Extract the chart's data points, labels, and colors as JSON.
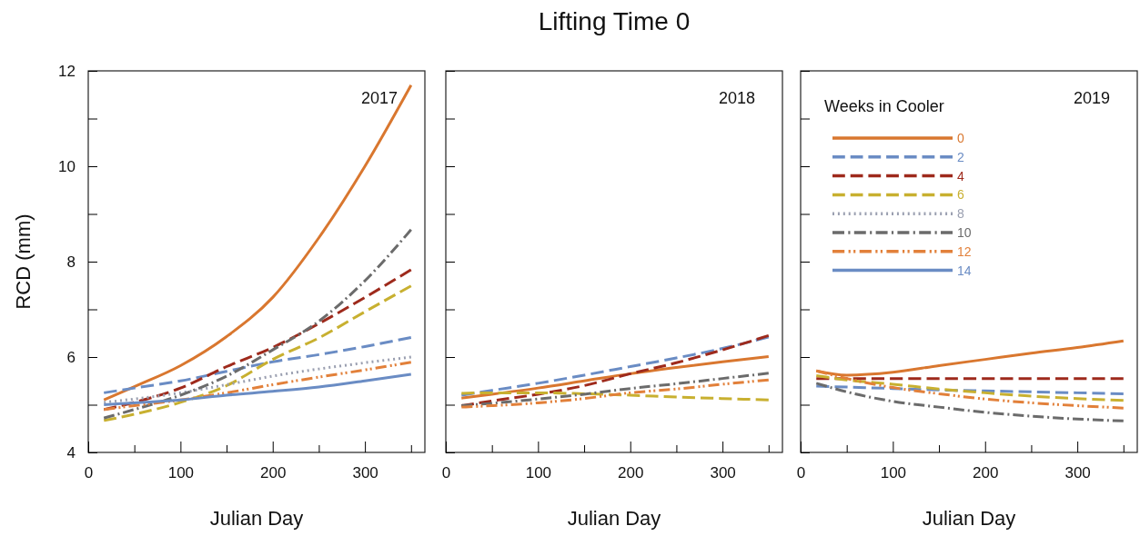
{
  "chart_data": [
    {
      "type": "line",
      "xlabel": "Julian Day",
      "ylabel": "RCD (mm)",
      "annotations": [
        "2017"
      ],
      "legend": false,
      "xlim": [
        0,
        365
      ],
      "ylim": [
        4,
        12
      ],
      "xticks": [
        0,
        {
          "value": 50,
          "label": null
        },
        100,
        {
          "value": 150,
          "label": null
        },
        200,
        {
          "value": 250,
          "label": null
        },
        300,
        {
          "value": 350,
          "label": null
        }
      ],
      "yticks": [
        4,
        {
          "value": 5,
          "label": null
        },
        6,
        {
          "value": 7,
          "label": null
        },
        8,
        {
          "value": 9,
          "label": null
        },
        10,
        {
          "value": 11,
          "label": null
        },
        12
      ],
      "x": [
        17,
        50,
        100,
        150,
        200,
        250,
        300,
        350
      ],
      "series": [
        {
          "color": "#d9772f",
          "line_style": "solid",
          "values": [
            5.1,
            5.38,
            5.82,
            6.43,
            7.25,
            8.5,
            10.0,
            11.7
          ]
        },
        {
          "color": "#6a8cc4",
          "line_style": "dashed",
          "values": [
            5.25,
            5.35,
            5.5,
            5.7,
            5.9,
            6.05,
            6.22,
            6.41
          ]
        },
        {
          "color": "#9e2a1c",
          "line_style": "dashed",
          "values": [
            4.9,
            5.05,
            5.35,
            5.8,
            6.2,
            6.7,
            7.25,
            7.83
          ]
        },
        {
          "color": "#c8b030",
          "line_style": "dashed",
          "values": [
            4.67,
            4.8,
            5.05,
            5.4,
            5.95,
            6.4,
            6.95,
            7.49
          ]
        },
        {
          "color": "#9a9fb0",
          "line_style": "dotted",
          "values": [
            5.05,
            5.12,
            5.25,
            5.42,
            5.6,
            5.75,
            5.88,
            6.0
          ]
        },
        {
          "color": "#6b6b6b",
          "line_style": "dashdot",
          "values": [
            4.72,
            4.9,
            5.2,
            5.6,
            6.15,
            6.75,
            7.6,
            8.67
          ]
        },
        {
          "color": "#e2803a",
          "line_style": "dashdotdot",
          "values": [
            4.9,
            4.98,
            5.1,
            5.25,
            5.42,
            5.58,
            5.73,
            5.89
          ]
        },
        {
          "color": "#6a8cc4",
          "line_style": "solid",
          "values": [
            5.0,
            5.04,
            5.1,
            5.2,
            5.28,
            5.37,
            5.5,
            5.64
          ]
        }
      ]
    },
    {
      "type": "line",
      "title": "Lifting Time 0",
      "xlabel": "Julian Day",
      "annotations": [
        "2018"
      ],
      "legend": false,
      "tick_labels": "x",
      "xlim": [
        0,
        365
      ],
      "ylim": [
        4,
        12
      ],
      "xticks": [
        0,
        {
          "value": 50,
          "label": null
        },
        100,
        {
          "value": 150,
          "label": null
        },
        200,
        {
          "value": 250,
          "label": null
        },
        300,
        {
          "value": 350,
          "label": null
        }
      ],
      "yticks": [
        4,
        {
          "value": 5,
          "label": null
        },
        6,
        {
          "value": 7,
          "label": null
        },
        8,
        {
          "value": 9,
          "label": null
        },
        10,
        {
          "value": 11,
          "label": null
        },
        12
      ],
      "x": [
        17,
        50,
        100,
        150,
        200,
        250,
        300,
        350
      ],
      "series": [
        {
          "color": "#d9772f",
          "line_style": "solid",
          "values": [
            5.14,
            5.22,
            5.35,
            5.5,
            5.65,
            5.78,
            5.9,
            6.01
          ]
        },
        {
          "color": "#6a8cc4",
          "line_style": "dashed",
          "values": [
            5.2,
            5.3,
            5.45,
            5.62,
            5.8,
            5.98,
            6.18,
            6.42
          ]
        },
        {
          "color": "#9e2a1c",
          "line_style": "dashed",
          "values": [
            4.98,
            5.08,
            5.22,
            5.4,
            5.65,
            5.88,
            6.15,
            6.45
          ]
        },
        {
          "color": "#c8b030",
          "line_style": "dashed",
          "values": [
            5.24,
            5.25,
            5.25,
            5.23,
            5.2,
            5.16,
            5.13,
            5.1
          ]
        },
        {
          "color": "#6b6b6b",
          "line_style": "dashdot",
          "values": [
            4.98,
            5.03,
            5.12,
            5.22,
            5.34,
            5.44,
            5.55,
            5.66
          ]
        },
        {
          "color": "#e2803a",
          "line_style": "dashdotdot",
          "values": [
            4.95,
            4.98,
            5.04,
            5.13,
            5.25,
            5.33,
            5.43,
            5.52
          ]
        }
      ]
    },
    {
      "type": "line",
      "xlabel": "Julian Day",
      "annotations": [
        "2019"
      ],
      "legend": "top left",
      "legend_title": "Weeks in Cooler",
      "tick_labels": "x",
      "xlim": [
        0,
        365
      ],
      "ylim": [
        4,
        12
      ],
      "xticks": [
        0,
        {
          "value": 50,
          "label": null
        },
        100,
        {
          "value": 150,
          "label": null
        },
        200,
        {
          "value": 250,
          "label": null
        },
        300,
        {
          "value": 350,
          "label": null
        }
      ],
      "yticks": [
        4,
        {
          "value": 5,
          "label": null
        },
        6,
        {
          "value": 7,
          "label": null
        },
        8,
        {
          "value": 9,
          "label": null
        },
        10,
        {
          "value": 11,
          "label": null
        },
        12
      ],
      "x": [
        17,
        50,
        100,
        150,
        200,
        250,
        300,
        350
      ],
      "series": [
        {
          "name": "0",
          "color": "#d9772f",
          "line_style": "solid",
          "values": [
            5.71,
            5.62,
            5.68,
            5.82,
            5.95,
            6.08,
            6.2,
            6.34
          ]
        },
        {
          "name": "2",
          "color": "#6a8cc4",
          "line_style": "dashed",
          "values": [
            5.39,
            5.37,
            5.34,
            5.31,
            5.29,
            5.27,
            5.25,
            5.23
          ]
        },
        {
          "name": "4",
          "color": "#9e2a1c",
          "line_style": "dashed",
          "values": [
            5.55,
            5.55,
            5.55,
            5.55,
            5.55,
            5.55,
            5.55,
            5.55
          ]
        },
        {
          "name": "6",
          "color": "#c8b030",
          "line_style": "dashed",
          "values": [
            5.61,
            5.52,
            5.43,
            5.33,
            5.25,
            5.18,
            5.13,
            5.09
          ]
        },
        {
          "name": "8",
          "color": "#9a9fb0",
          "line_style": "dotted",
          "values": [
            null,
            null,
            null,
            null,
            null,
            null,
            null,
            null
          ]
        },
        {
          "name": "10",
          "color": "#6b6b6b",
          "line_style": "dashdot",
          "values": [
            5.45,
            5.27,
            5.07,
            4.95,
            4.84,
            4.76,
            4.7,
            4.66
          ]
        },
        {
          "name": "12",
          "color": "#e2803a",
          "line_style": "dashdotdot",
          "values": [
            5.71,
            5.55,
            5.36,
            5.23,
            5.12,
            5.04,
            4.98,
            4.93
          ]
        },
        {
          "name": "14",
          "color": "#6a8cc4",
          "line_style": "solid",
          "values": [
            null,
            null,
            null,
            null,
            null,
            null,
            null,
            null
          ]
        }
      ]
    }
  ]
}
